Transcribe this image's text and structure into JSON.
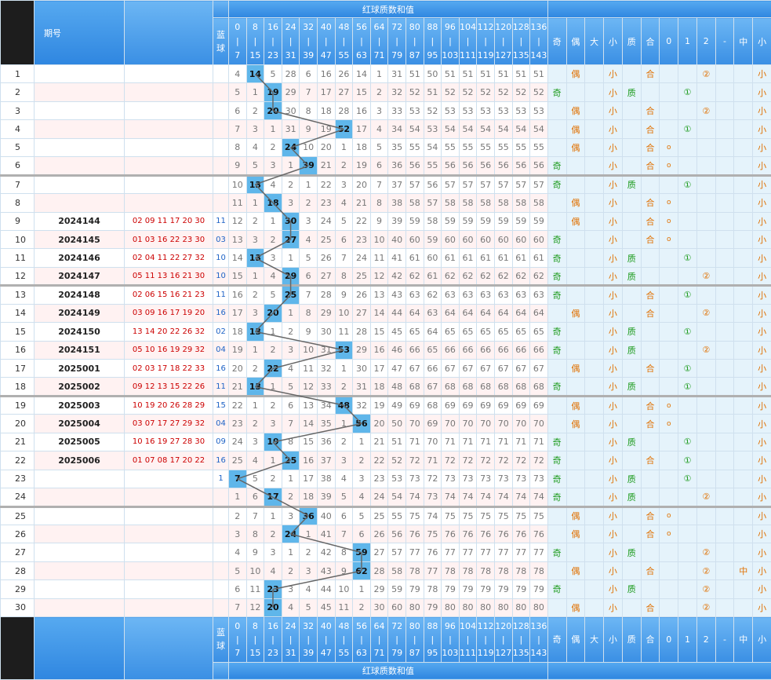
{
  "header": {
    "issue_label": "期号",
    "blue_label": "蓝球",
    "group_title": "红球质数和值",
    "footer_title": "红球质数和值",
    "ranges": [
      [
        "0",
        "7"
      ],
      [
        "8",
        "15"
      ],
      [
        "16",
        "23"
      ],
      [
        "24",
        "31"
      ],
      [
        "32",
        "39"
      ],
      [
        "40",
        "47"
      ],
      [
        "48",
        "55"
      ],
      [
        "56",
        "63"
      ],
      [
        "64",
        "71"
      ],
      [
        "72",
        "79"
      ],
      [
        "80",
        "87"
      ],
      [
        "88",
        "95"
      ],
      [
        "96",
        "103"
      ],
      [
        "104",
        "111"
      ],
      [
        "112",
        "119"
      ],
      [
        "120",
        "127"
      ],
      [
        "128",
        "135"
      ],
      [
        "136",
        "143"
      ]
    ],
    "attr_labels": [
      "奇",
      "偶",
      "大",
      "小",
      "质",
      "合",
      "0",
      "1",
      "2",
      "-",
      "中",
      "小"
    ]
  },
  "rows": [
    {
      "n": "1",
      "issue": "",
      "red": "",
      "blue": "",
      "cells": [
        "4",
        "14",
        "5",
        "28",
        "6",
        "16",
        "26",
        "14",
        "1",
        "31",
        "51",
        "50",
        "51",
        "51",
        "51",
        "51",
        "51",
        "51"
      ],
      "hit": 1,
      "attrs": [
        "",
        "偶",
        "",
        "小",
        "",
        "合",
        "",
        "",
        "②",
        "",
        "",
        "小"
      ]
    },
    {
      "n": "2",
      "issue": "",
      "red": "",
      "blue": "",
      "cells": [
        "5",
        "1",
        "19",
        "29",
        "7",
        "17",
        "27",
        "15",
        "2",
        "32",
        "52",
        "51",
        "52",
        "52",
        "52",
        "52",
        "52",
        "52"
      ],
      "hit": 2,
      "attrs": [
        "奇",
        "",
        "",
        "小",
        "质",
        "",
        "",
        "①",
        "",
        "",
        "",
        "小"
      ]
    },
    {
      "n": "3",
      "issue": "",
      "red": "",
      "blue": "",
      "cells": [
        "6",
        "2",
        "20",
        "30",
        "8",
        "18",
        "28",
        "16",
        "3",
        "33",
        "53",
        "52",
        "53",
        "53",
        "53",
        "53",
        "53",
        "53"
      ],
      "hit": 2,
      "attrs": [
        "",
        "偶",
        "",
        "小",
        "",
        "合",
        "",
        "",
        "②",
        "",
        "",
        "小"
      ]
    },
    {
      "n": "4",
      "issue": "",
      "red": "",
      "blue": "",
      "cells": [
        "7",
        "3",
        "1",
        "31",
        "9",
        "19",
        "52",
        "17",
        "4",
        "34",
        "54",
        "53",
        "54",
        "54",
        "54",
        "54",
        "54",
        "54"
      ],
      "hit": 6,
      "attrs": [
        "",
        "偶",
        "",
        "小",
        "",
        "合",
        "",
        "①",
        "",
        "",
        "",
        "小"
      ]
    },
    {
      "n": "5",
      "issue": "",
      "red": "",
      "blue": "",
      "cells": [
        "8",
        "4",
        "2",
        "24",
        "10",
        "20",
        "1",
        "18",
        "5",
        "35",
        "55",
        "54",
        "55",
        "55",
        "55",
        "55",
        "55",
        "55"
      ],
      "hit": 3,
      "attrs": [
        "",
        "偶",
        "",
        "小",
        "",
        "合",
        "o",
        "",
        "",
        "",
        "",
        "小"
      ]
    },
    {
      "n": "6",
      "issue": "",
      "red": "",
      "blue": "",
      "cells": [
        "9",
        "5",
        "3",
        "1",
        "39",
        "21",
        "2",
        "19",
        "6",
        "36",
        "56",
        "55",
        "56",
        "56",
        "56",
        "56",
        "56",
        "56"
      ],
      "hit": 4,
      "attrs": [
        "奇",
        "",
        "",
        "小",
        "",
        "合",
        "o",
        "",
        "",
        "",
        "",
        "小"
      ]
    },
    {
      "n": "7",
      "issue": "",
      "red": "",
      "blue": "",
      "cells": [
        "10",
        "13",
        "4",
        "2",
        "1",
        "22",
        "3",
        "20",
        "7",
        "37",
        "57",
        "56",
        "57",
        "57",
        "57",
        "57",
        "57",
        "57"
      ],
      "hit": 1,
      "attrs": [
        "奇",
        "",
        "",
        "小",
        "质",
        "",
        "",
        "①",
        "",
        "",
        "",
        "小"
      ]
    },
    {
      "n": "8",
      "issue": "",
      "red": "",
      "blue": "",
      "cells": [
        "11",
        "1",
        "18",
        "3",
        "2",
        "23",
        "4",
        "21",
        "8",
        "38",
        "58",
        "57",
        "58",
        "58",
        "58",
        "58",
        "58",
        "58"
      ],
      "hit": 2,
      "attrs": [
        "",
        "偶",
        "",
        "小",
        "",
        "合",
        "o",
        "",
        "",
        "",
        "",
        "小"
      ]
    },
    {
      "n": "9",
      "issue": "2024144",
      "red": "02 09 11 17 20 30",
      "blue": "11",
      "cells": [
        "12",
        "2",
        "1",
        "30",
        "3",
        "24",
        "5",
        "22",
        "9",
        "39",
        "59",
        "58",
        "59",
        "59",
        "59",
        "59",
        "59",
        "59"
      ],
      "hit": 3,
      "attrs": [
        "",
        "偶",
        "",
        "小",
        "",
        "合",
        "o",
        "",
        "",
        "",
        "",
        "小"
      ]
    },
    {
      "n": "10",
      "issue": "2024145",
      "red": "01 03 16 22 23 30",
      "blue": "03",
      "cells": [
        "13",
        "3",
        "2",
        "27",
        "4",
        "25",
        "6",
        "23",
        "10",
        "40",
        "60",
        "59",
        "60",
        "60",
        "60",
        "60",
        "60",
        "60"
      ],
      "hit": 3,
      "attrs": [
        "奇",
        "",
        "",
        "小",
        "",
        "合",
        "o",
        "",
        "",
        "",
        "",
        "小"
      ]
    },
    {
      "n": "11",
      "issue": "2024146",
      "red": "02 04 11 22 27 32",
      "blue": "10",
      "cells": [
        "14",
        "13",
        "3",
        "1",
        "5",
        "26",
        "7",
        "24",
        "11",
        "41",
        "61",
        "60",
        "61",
        "61",
        "61",
        "61",
        "61",
        "61"
      ],
      "hit": 1,
      "attrs": [
        "奇",
        "",
        "",
        "小",
        "质",
        "",
        "",
        "①",
        "",
        "",
        "",
        "小"
      ]
    },
    {
      "n": "12",
      "issue": "2024147",
      "red": "05 11 13 16 21 30",
      "blue": "10",
      "cells": [
        "15",
        "1",
        "4",
        "29",
        "6",
        "27",
        "8",
        "25",
        "12",
        "42",
        "62",
        "61",
        "62",
        "62",
        "62",
        "62",
        "62",
        "62"
      ],
      "hit": 3,
      "attrs": [
        "奇",
        "",
        "",
        "小",
        "质",
        "",
        "",
        "",
        "②",
        "",
        "",
        "小"
      ]
    },
    {
      "n": "13",
      "issue": "2024148",
      "red": "02 06 15 16 21 23",
      "blue": "11",
      "cells": [
        "16",
        "2",
        "5",
        "25",
        "7",
        "28",
        "9",
        "26",
        "13",
        "43",
        "63",
        "62",
        "63",
        "63",
        "63",
        "63",
        "63",
        "63"
      ],
      "hit": 3,
      "attrs": [
        "奇",
        "",
        "",
        "小",
        "",
        "合",
        "",
        "①",
        "",
        "",
        "",
        "小"
      ]
    },
    {
      "n": "14",
      "issue": "2024149",
      "red": "03 09 16 17 19 20",
      "blue": "16",
      "cells": [
        "17",
        "3",
        "20",
        "1",
        "8",
        "29",
        "10",
        "27",
        "14",
        "44",
        "64",
        "63",
        "64",
        "64",
        "64",
        "64",
        "64",
        "64"
      ],
      "hit": 2,
      "attrs": [
        "",
        "偶",
        "",
        "小",
        "",
        "合",
        "",
        "",
        "②",
        "",
        "",
        "小"
      ]
    },
    {
      "n": "15",
      "issue": "2024150",
      "red": "13 14 20 22 26 32",
      "blue": "02",
      "cells": [
        "18",
        "13",
        "1",
        "2",
        "9",
        "30",
        "11",
        "28",
        "15",
        "45",
        "65",
        "64",
        "65",
        "65",
        "65",
        "65",
        "65",
        "65"
      ],
      "hit": 1,
      "attrs": [
        "奇",
        "",
        "",
        "小",
        "质",
        "",
        "",
        "①",
        "",
        "",
        "",
        "小"
      ]
    },
    {
      "n": "16",
      "issue": "2024151",
      "red": "05 10 16 19 29 32",
      "blue": "04",
      "cells": [
        "19",
        "1",
        "2",
        "3",
        "10",
        "31",
        "53",
        "29",
        "16",
        "46",
        "66",
        "65",
        "66",
        "66",
        "66",
        "66",
        "66",
        "66"
      ],
      "hit": 6,
      "attrs": [
        "奇",
        "",
        "",
        "小",
        "质",
        "",
        "",
        "",
        "②",
        "",
        "",
        "小"
      ]
    },
    {
      "n": "17",
      "issue": "2025001",
      "red": "02 03 17 18 22 33",
      "blue": "16",
      "cells": [
        "20",
        "2",
        "22",
        "4",
        "11",
        "32",
        "1",
        "30",
        "17",
        "47",
        "67",
        "66",
        "67",
        "67",
        "67",
        "67",
        "67",
        "67"
      ],
      "hit": 2,
      "attrs": [
        "",
        "偶",
        "",
        "小",
        "",
        "合",
        "",
        "①",
        "",
        "",
        "",
        "小"
      ]
    },
    {
      "n": "18",
      "issue": "2025002",
      "red": "09 12 13 15 22 26",
      "blue": "11",
      "cells": [
        "21",
        "13",
        "1",
        "5",
        "12",
        "33",
        "2",
        "31",
        "18",
        "48",
        "68",
        "67",
        "68",
        "68",
        "68",
        "68",
        "68",
        "68"
      ],
      "hit": 1,
      "attrs": [
        "奇",
        "",
        "",
        "小",
        "质",
        "",
        "",
        "①",
        "",
        "",
        "",
        "小"
      ]
    },
    {
      "n": "19",
      "issue": "2025003",
      "red": "10 19 20 26 28 29",
      "blue": "15",
      "cells": [
        "22",
        "1",
        "2",
        "6",
        "13",
        "34",
        "48",
        "32",
        "19",
        "49",
        "69",
        "68",
        "69",
        "69",
        "69",
        "69",
        "69",
        "69"
      ],
      "hit": 6,
      "attrs": [
        "",
        "偶",
        "",
        "小",
        "",
        "合",
        "o",
        "",
        "",
        "",
        "",
        "小"
      ]
    },
    {
      "n": "20",
      "issue": "2025004",
      "red": "03 07 17 27 29 32",
      "blue": "04",
      "cells": [
        "23",
        "2",
        "3",
        "7",
        "14",
        "35",
        "1",
        "56",
        "20",
        "50",
        "70",
        "69",
        "70",
        "70",
        "70",
        "70",
        "70",
        "70"
      ],
      "hit": 7,
      "attrs": [
        "",
        "偶",
        "",
        "小",
        "",
        "合",
        "o",
        "",
        "",
        "",
        "",
        "小"
      ]
    },
    {
      "n": "21",
      "issue": "2025005",
      "red": "10 16 19 27 28 30",
      "blue": "09",
      "cells": [
        "24",
        "3",
        "19",
        "8",
        "15",
        "36",
        "2",
        "1",
        "21",
        "51",
        "71",
        "70",
        "71",
        "71",
        "71",
        "71",
        "71",
        "71"
      ],
      "hit": 2,
      "attrs": [
        "奇",
        "",
        "",
        "小",
        "质",
        "",
        "",
        "①",
        "",
        "",
        "",
        "小"
      ]
    },
    {
      "n": "22",
      "issue": "2025006",
      "red": "01 07 08 17 20 22",
      "blue": "16",
      "cells": [
        "25",
        "4",
        "1",
        "25",
        "16",
        "37",
        "3",
        "2",
        "22",
        "52",
        "72",
        "71",
        "72",
        "72",
        "72",
        "72",
        "72",
        "72"
      ],
      "hit": 3,
      "attrs": [
        "奇",
        "",
        "",
        "小",
        "",
        "合",
        "",
        "①",
        "",
        "",
        "",
        "小"
      ]
    },
    {
      "n": "23",
      "issue": "",
      "red": "",
      "blue": "1",
      "cells": [
        "7",
        "5",
        "2",
        "1",
        "17",
        "38",
        "4",
        "3",
        "23",
        "53",
        "73",
        "72",
        "73",
        "73",
        "73",
        "73",
        "73",
        "73"
      ],
      "hit": 0,
      "attrs": [
        "奇",
        "",
        "",
        "小",
        "质",
        "",
        "",
        "①",
        "",
        "",
        "",
        "小"
      ]
    },
    {
      "n": "24",
      "issue": "",
      "red": "",
      "blue": "",
      "cells": [
        "1",
        "6",
        "17",
        "2",
        "18",
        "39",
        "5",
        "4",
        "24",
        "54",
        "74",
        "73",
        "74",
        "74",
        "74",
        "74",
        "74",
        "74"
      ],
      "hit": 2,
      "attrs": [
        "奇",
        "",
        "",
        "小",
        "质",
        "",
        "",
        "",
        "②",
        "",
        "",
        "小"
      ]
    },
    {
      "n": "25",
      "issue": "",
      "red": "",
      "blue": "",
      "cells": [
        "2",
        "7",
        "1",
        "3",
        "36",
        "40",
        "6",
        "5",
        "25",
        "55",
        "75",
        "74",
        "75",
        "75",
        "75",
        "75",
        "75",
        "75"
      ],
      "hit": 4,
      "attrs": [
        "",
        "偶",
        "",
        "小",
        "",
        "合",
        "o",
        "",
        "",
        "",
        "",
        "小"
      ]
    },
    {
      "n": "26",
      "issue": "",
      "red": "",
      "blue": "",
      "cells": [
        "3",
        "8",
        "2",
        "24",
        "1",
        "41",
        "7",
        "6",
        "26",
        "56",
        "76",
        "75",
        "76",
        "76",
        "76",
        "76",
        "76",
        "76"
      ],
      "hit": 3,
      "attrs": [
        "",
        "偶",
        "",
        "小",
        "",
        "合",
        "o",
        "",
        "",
        "",
        "",
        "小"
      ]
    },
    {
      "n": "27",
      "issue": "",
      "red": "",
      "blue": "",
      "cells": [
        "4",
        "9",
        "3",
        "1",
        "2",
        "42",
        "8",
        "59",
        "27",
        "57",
        "77",
        "76",
        "77",
        "77",
        "77",
        "77",
        "77",
        "77"
      ],
      "hit": 7,
      "attrs": [
        "奇",
        "",
        "",
        "小",
        "质",
        "",
        "",
        "",
        "②",
        "",
        "",
        "小"
      ]
    },
    {
      "n": "28",
      "issue": "",
      "red": "",
      "blue": "",
      "cells": [
        "5",
        "10",
        "4",
        "2",
        "3",
        "43",
        "9",
        "62",
        "28",
        "58",
        "78",
        "77",
        "78",
        "78",
        "78",
        "78",
        "78",
        "78"
      ],
      "hit": 7,
      "attrs": [
        "",
        "偶",
        "",
        "小",
        "",
        "合",
        "",
        "",
        "②",
        "",
        "中",
        "小"
      ]
    },
    {
      "n": "29",
      "issue": "",
      "red": "",
      "blue": "",
      "cells": [
        "6",
        "11",
        "23",
        "3",
        "4",
        "44",
        "10",
        "1",
        "29",
        "59",
        "79",
        "78",
        "79",
        "79",
        "79",
        "79",
        "79",
        "79"
      ],
      "hit": 2,
      "attrs": [
        "奇",
        "",
        "",
        "小",
        "质",
        "",
        "",
        "",
        "②",
        "",
        "",
        "小"
      ]
    },
    {
      "n": "30",
      "issue": "",
      "red": "",
      "blue": "",
      "cells": [
        "7",
        "12",
        "20",
        "4",
        "5",
        "45",
        "11",
        "2",
        "30",
        "60",
        "80",
        "79",
        "80",
        "80",
        "80",
        "80",
        "80",
        "80"
      ],
      "hit": 2,
      "attrs": [
        "",
        "偶",
        "",
        "小",
        "",
        "合",
        "",
        "",
        "②",
        "",
        "",
        "小"
      ]
    }
  ],
  "colors": {
    "header": "#3a8fe4",
    "hit": "#5fb6ea",
    "red": "#cc0000",
    "blue": "#1e63c6",
    "zebra": "#fff2f2"
  }
}
